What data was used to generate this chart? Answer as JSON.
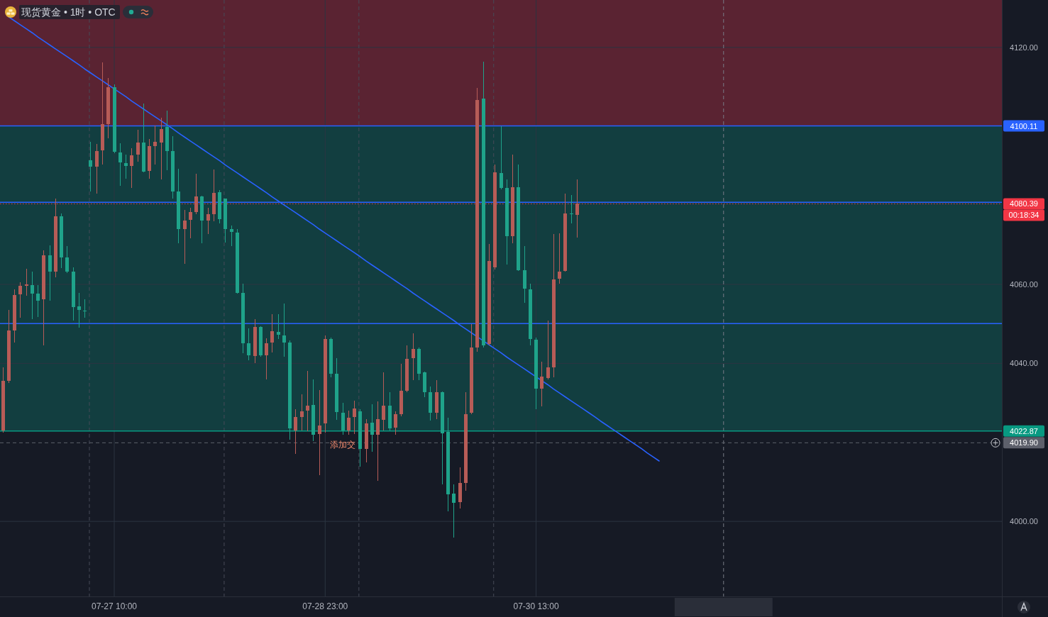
{
  "chart_data": {
    "type": "candlestick",
    "title": "现货黄金 • 1时 • OTC",
    "categories": [
      null,
      null,
      null,
      null,
      null,
      null,
      null,
      null,
      null,
      null,
      null,
      null,
      null,
      null,
      null,
      null,
      null,
      null,
      null,
      "07-27 10:00",
      null,
      null,
      null,
      null,
      null,
      null,
      null,
      null,
      null,
      null,
      null,
      null,
      null,
      null,
      null,
      null,
      null,
      null,
      null,
      null,
      null,
      null,
      null,
      null,
      null,
      null,
      null,
      null,
      null,
      null,
      null,
      null,
      null,
      null,
      null,
      "07-28 23:00",
      null,
      null,
      null,
      null,
      null,
      null,
      null,
      null,
      null,
      null,
      null,
      null,
      null,
      null,
      null,
      null,
      null,
      null,
      null,
      null,
      null,
      null,
      null,
      null,
      null,
      null,
      null,
      null,
      null,
      null,
      null,
      null,
      null,
      null,
      null,
      "07-30 13:00",
      null,
      null,
      null,
      null,
      null,
      null,
      null,
      null,
      null,
      null,
      null,
      null,
      null,
      null,
      null,
      null,
      null,
      null,
      null,
      null,
      null,
      null,
      null,
      null,
      null,
      null,
      null,
      null,
      null,
      null,
      null,
      null,
      null,
      null,
      null,
      null,
      null,
      null,
      null,
      null,
      null,
      null,
      null,
      null,
      null,
      null,
      null,
      null,
      null,
      null,
      null,
      null,
      null,
      null,
      null,
      null,
      null,
      null,
      null,
      null,
      null,
      null,
      null,
      null,
      null,
      null,
      null,
      null,
      null,
      null,
      null,
      null,
      null,
      null,
      null,
      null,
      null,
      null,
      null
    ],
    "ohlc": [
      [
        4023.0,
        4039.0,
        4022.5,
        4035.6
      ],
      [
        4035.6,
        4053.5,
        4035.0,
        4048.3
      ],
      [
        4048.3,
        4058.7,
        4045.3,
        4057.3
      ],
      [
        4057.5,
        4060.5,
        4051.6,
        4059.6
      ],
      [
        4059.6,
        4064.0,
        4057.1,
        4060.0
      ],
      [
        4059.8,
        4063.2,
        4051.2,
        4057.7
      ],
      [
        4057.7,
        4059.8,
        4051.7,
        4055.9
      ],
      [
        4056.2,
        4068.6,
        4044.6,
        4067.4
      ],
      [
        4067.4,
        4069.9,
        4055.9,
        4063.2
      ],
      [
        4063.2,
        4081.7,
        4061.8,
        4077.2
      ],
      [
        4077.2,
        4078.0,
        4064.1,
        4066.8
      ],
      [
        4066.8,
        4069.7,
        4062.9,
        4063.2
      ],
      [
        4063.2,
        4064.3,
        4050.8,
        4054.3
      ],
      [
        4054.4,
        4057.8,
        4049.0,
        4053.5
      ],
      [
        4053.4,
        4056.2,
        4051.6,
        4053.2
      ],
      [
        4091.4,
        4096.1,
        4083.5,
        4089.8
      ],
      [
        4089.8,
        4095.5,
        4083.0,
        4093.8
      ],
      [
        4094.0,
        4116.2,
        4090.4,
        4100.6
      ],
      [
        4100.6,
        4112.3,
        4097.0,
        4109.9
      ],
      [
        4109.9,
        4110.7,
        4093.2,
        4093.6
      ],
      [
        4093.4,
        4095.7,
        4085.0,
        4090.9
      ],
      [
        4090.7,
        4092.9,
        4086.8,
        4090.0
      ],
      [
        4090.0,
        4094.5,
        4084.4,
        4092.7
      ],
      [
        4092.9,
        4099.2,
        4091.1,
        4095.9
      ],
      [
        4095.9,
        4105.8,
        4088.4,
        4088.6
      ],
      [
        4088.7,
        4096.8,
        4086.8,
        4095.0
      ],
      [
        4095.0,
        4100.2,
        4090.4,
        4096.1
      ],
      [
        4095.9,
        4102.2,
        4086.6,
        4099.3
      ],
      [
        4099.9,
        4104.0,
        4088.9,
        4093.8
      ],
      [
        4093.8,
        4097.5,
        4081.7,
        4083.5
      ],
      [
        4083.5,
        4089.3,
        4070.4,
        4074.0
      ],
      [
        4074.0,
        4078.9,
        4065.2,
        4076.2
      ],
      [
        4076.3,
        4079.4,
        4071.7,
        4078.3
      ],
      [
        4078.3,
        4088.0,
        4077.8,
        4082.3
      ],
      [
        4082.3,
        4082.5,
        4070.4,
        4076.2
      ],
      [
        4076.2,
        4079.4,
        4072.8,
        4077.8
      ],
      [
        4077.8,
        4089.1,
        4076.0,
        4083.2
      ],
      [
        4083.4,
        4083.9,
        4075.4,
        4076.5
      ],
      [
        4081.7,
        4081.8,
        4070.6,
        4074.0
      ],
      [
        4074.0,
        4074.9,
        4069.7,
        4073.3
      ],
      [
        4073.1,
        4074.0,
        4057.6,
        4057.8
      ],
      [
        4057.8,
        4060.2,
        4042.6,
        4045.1
      ],
      [
        4045.1,
        4048.9,
        4040.8,
        4042.0
      ],
      [
        4041.9,
        4051.2,
        4040.1,
        4049.2
      ],
      [
        4049.2,
        4049.4,
        4041.7,
        4042.0
      ],
      [
        4042.0,
        4046.3,
        4035.9,
        4045.1
      ],
      [
        4045.3,
        4052.5,
        4042.8,
        4048.1
      ],
      [
        4048.0,
        4052.5,
        4046.2,
        4047.2
      ],
      [
        4047.1,
        4055.2,
        4041.7,
        4045.3
      ],
      [
        4045.3,
        4045.8,
        4020.7,
        4023.5
      ],
      [
        4023.0,
        4028.4,
        4017.1,
        4026.4
      ],
      [
        4026.4,
        4032.2,
        4023.0,
        4027.8
      ],
      [
        4028.0,
        4038.1,
        4022.8,
        4029.3
      ],
      [
        4029.5,
        4035.9,
        4020.3,
        4021.9
      ],
      [
        4022.1,
        4033.2,
        4011.7,
        4024.3
      ],
      [
        4024.8,
        4047.1,
        4022.5,
        4046.2
      ],
      [
        4046.2,
        4046.5,
        4036.5,
        4037.4
      ],
      [
        4037.4,
        4041.3,
        4025.7,
        4027.7
      ],
      [
        4027.5,
        4030.0,
        4021.9,
        4023.0
      ],
      [
        4023.0,
        4028.0,
        4021.9,
        4026.2
      ],
      [
        4026.4,
        4030.5,
        4022.1,
        4028.6
      ],
      [
        4027.8,
        4028.4,
        4013.8,
        4018.3
      ],
      [
        4018.3,
        4025.9,
        4014.9,
        4024.8
      ],
      [
        4025.0,
        4029.6,
        4017.6,
        4021.9
      ],
      [
        4021.9,
        4030.4,
        4010.2,
        4025.9
      ],
      [
        4025.7,
        4037.7,
        4023.0,
        4029.3
      ],
      [
        4029.3,
        4032.7,
        4023.0,
        4023.5
      ],
      [
        4023.7,
        4027.8,
        4021.9,
        4027.1
      ],
      [
        4027.2,
        4039.9,
        4026.6,
        4033.1
      ],
      [
        4033.1,
        4044.6,
        4032.7,
        4041.1
      ],
      [
        4041.3,
        4047.6,
        4035.7,
        4043.7
      ],
      [
        4043.7,
        4044.0,
        4035.7,
        4037.4
      ],
      [
        4037.7,
        4037.9,
        4031.4,
        4032.7
      ],
      [
        4032.7,
        4034.1,
        4025.5,
        4027.5
      ],
      [
        4027.5,
        4035.7,
        4025.9,
        4032.7
      ],
      [
        4032.7,
        4032.9,
        4009.3,
        4022.3
      ],
      [
        4022.6,
        4026.2,
        4002.5,
        4006.8
      ],
      [
        4007.0,
        4009.3,
        3995.9,
        4004.7
      ],
      [
        4004.9,
        4013.7,
        4003.2,
        4009.7
      ],
      [
        4009.7,
        4032.7,
        4007.7,
        4027.1
      ],
      [
        4027.5,
        4049.9,
        4027.1,
        4044.0
      ],
      [
        4044.0,
        4109.8,
        4042.9,
        4106.7
      ],
      [
        4107.1,
        4116.4,
        4044.0,
        4044.6
      ],
      [
        4044.9,
        4070.2,
        4044.6,
        4065.9
      ],
      [
        4064.3,
        4090.4,
        4063.8,
        4088.4
      ],
      [
        4088.2,
        4100.1,
        4084.0,
        4084.4
      ],
      [
        4084.4,
        4086.6,
        4065.0,
        4072.2
      ],
      [
        4072.2,
        4092.9,
        4070.4,
        4084.6
      ],
      [
        4084.6,
        4090.4,
        4063.4,
        4063.6
      ],
      [
        4063.6,
        4069.7,
        4055.3,
        4058.9
      ],
      [
        4058.7,
        4060.2,
        4044.6,
        4046.2
      ],
      [
        4046.0,
        4046.5,
        4028.4,
        4033.6
      ],
      [
        4033.6,
        4040.4,
        4029.1,
        4036.6
      ],
      [
        4036.3,
        4050.8,
        4035.9,
        4039.0
      ],
      [
        4039.0,
        4072.8,
        4036.5,
        4061.3
      ],
      [
        4061.4,
        4072.9,
        4060.2,
        4063.2
      ],
      [
        4063.4,
        4083.0,
        4063.2,
        4078.0
      ],
      [
        4077.9,
        4082.6,
        4075.4,
        4077.7
      ],
      [
        4077.6,
        4086.6,
        4071.9,
        4080.39
      ],
      null,
      null,
      null,
      null,
      null,
      null,
      null,
      null,
      null,
      null,
      null,
      null,
      null,
      null,
      null,
      null,
      null,
      null,
      null,
      null,
      null,
      null,
      null,
      null,
      null,
      null,
      null,
      null,
      null,
      null,
      null,
      null,
      null,
      null,
      null,
      null,
      null,
      null,
      null,
      null,
      null,
      null,
      null,
      null,
      null,
      null,
      null,
      null,
      null,
      null,
      null,
      null,
      null,
      null,
      null,
      null,
      null,
      null,
      null,
      null,
      null,
      null,
      null,
      null,
      null,
      null,
      null,
      null,
      null,
      null,
      null,
      null
    ],
    "colors": [
      "#b75c57",
      "#b75c57",
      "#b75c57",
      "#b75c57",
      "#b75c57",
      "#1fa38a",
      "#1fa38a",
      "#b75c57",
      "#1fa38a",
      "#b75c57",
      "#1fa38a",
      "#1fa38a",
      "#1fa38a",
      "#1fa38a",
      "#1fa38a",
      "#1fa38a",
      "#b75c57",
      "#b75c57",
      "#b75c57",
      "#1fa38a",
      "#1fa38a",
      "#1fa38a",
      "#b75c57",
      "#b75c57",
      "#1fa38a",
      "#b75c57",
      "#b75c57",
      "#b75c57",
      "#1fa38a",
      "#1fa38a",
      "#1fa38a",
      "#b75c57",
      "#b75c57",
      "#b75c57",
      "#1fa38a",
      "#b75c57",
      "#b75c57",
      "#1fa38a",
      "#1fa38a",
      "#1fa38a",
      "#1fa38a",
      "#1fa38a",
      "#1fa38a",
      "#b75c57",
      "#1fa38a",
      "#b75c57",
      "#b75c57",
      "#1fa38a",
      "#1fa38a",
      "#1fa38a",
      "#b75c57",
      "#b75c57",
      "#b75c57",
      "#1fa38a",
      "#b75c57",
      "#b75c57",
      "#1fa38a",
      "#1fa38a",
      "#1fa38a",
      "#b75c57",
      "#b75c57",
      "#1fa38a",
      "#b75c57",
      "#1fa38a",
      "#b75c57",
      "#b75c57",
      "#1fa38a",
      "#b75c57",
      "#b75c57",
      "#b75c57",
      "#b75c57",
      "#1fa38a",
      "#1fa38a",
      "#1fa38a",
      "#b75c57",
      "#1fa38a",
      "#1fa38a",
      "#1fa38a",
      "#b75c57",
      "#b75c57",
      "#b75c57",
      "#b75c57",
      "#1fa38a",
      "#b75c57",
      "#b75c57",
      "#1fa38a",
      "#1fa38a",
      "#b75c57",
      "#1fa38a",
      "#1fa38a",
      "#1fa38a",
      "#1fa38a",
      "#b75c57",
      "#b75c57",
      "#b75c57",
      "#b75c57",
      "#b75c57",
      "#1fa38a",
      "#b75c57",
      null,
      null,
      null,
      null,
      null,
      null,
      null,
      null,
      null,
      null,
      null,
      null,
      null,
      null,
      null,
      null,
      null,
      null,
      null,
      null,
      null,
      null,
      null,
      null,
      null,
      null,
      null,
      null,
      null,
      null,
      null,
      null,
      null,
      null,
      null,
      null,
      null,
      null,
      null,
      null,
      null,
      null,
      null,
      null,
      null,
      null,
      null,
      null,
      null,
      null,
      null,
      null,
      null,
      null,
      null,
      null,
      null,
      null,
      null,
      null,
      null,
      null,
      null,
      null,
      null,
      null,
      null,
      null,
      null,
      null,
      null,
      null
    ],
    "series": [
      {
        "type": "line",
        "color": "#2962ff",
        "values": [
          null,
          4127.7,
          4126.7,
          4125.7,
          4124.7,
          4123.7,
          4122.6,
          4121.6,
          4120.6,
          4119.6,
          4118.6,
          4117.6,
          4116.6,
          4115.6,
          4114.5,
          4113.5,
          4112.5,
          4111.5,
          4110.5,
          4109.5,
          4108.5,
          4107.5,
          4106.4,
          4105.4,
          4104.4,
          4103.4,
          4102.4,
          4101.4,
          4100.4,
          4099.4,
          4098.3,
          4097.3,
          4096.3,
          4095.3,
          4094.3,
          4093.3,
          4092.3,
          4091.3,
          4090.2,
          4089.2,
          4088.2,
          4087.2,
          4086.2,
          4085.2,
          4084.2,
          4083.2,
          4082.1,
          4081.1,
          4080.1,
          4079.1,
          4078.1,
          4077.1,
          4076.1,
          4075.1,
          4074.0,
          4073.0,
          4072.0,
          4071.0,
          4070.0,
          4069.0,
          4068.0,
          4067.0,
          4065.9,
          4064.9,
          4063.9,
          4062.9,
          4061.9,
          4060.9,
          4059.9,
          4058.9,
          4057.8,
          4056.8,
          4055.8,
          4054.8,
          4053.8,
          4052.8,
          4051.8,
          4050.8,
          4049.7,
          4048.7,
          4047.7,
          4046.7,
          4045.7,
          4044.7,
          4043.7,
          4042.7,
          4041.6,
          4040.6,
          4039.6,
          4038.6,
          4037.6,
          4036.6,
          4035.6,
          4034.6,
          4033.5,
          4032.5,
          4031.5,
          4030.5,
          4029.5,
          4028.5,
          4027.5,
          4026.5,
          4025.4,
          4024.4,
          4023.4,
          4022.4,
          4021.4,
          4020.4,
          4019.4,
          4018.4,
          4017.3,
          4016.3,
          4015.3,
          null,
          null,
          null,
          null,
          null,
          null,
          null,
          null,
          null,
          null,
          null,
          null,
          null,
          null,
          null,
          null,
          null,
          null,
          null,
          null,
          null,
          null,
          null,
          null,
          null,
          null,
          null,
          null,
          null,
          null,
          null,
          null,
          null,
          null,
          null,
          null,
          null,
          null,
          null,
          null,
          null,
          null,
          null,
          null,
          null,
          null,
          null,
          null,
          null,
          null,
          null,
          null,
          null,
          null,
          null,
          null,
          null,
          null
        ]
      }
    ],
    "ylim": [
      3981,
      4132
    ],
    "yticks": [
      {
        "value": 4000,
        "label": "4000.00"
      },
      {
        "value": 4040,
        "label": "4040.00"
      },
      {
        "value": 4060,
        "label": "4060.00"
      },
      {
        "value": 4120,
        "label": "4120.00"
      }
    ],
    "grid": true,
    "bands": [
      {
        "axis": "y",
        "from": 4100.11,
        "to": 4132,
        "color": "#5a2332"
      },
      {
        "axis": "y",
        "from": 4022.87,
        "to": 4100.11,
        "color": "#123e40"
      }
    ],
    "ref_lines": [
      {
        "axis": "y",
        "value": 4100.11,
        "label": "4100.11",
        "color": "#2962ff"
      },
      {
        "axis": "y",
        "value": 4080.8,
        "color": "#2962ff"
      },
      {
        "axis": "y",
        "value": 4050.1,
        "color": "#2962ff"
      },
      {
        "axis": "y",
        "value": 4080.39,
        "label": "4080.39",
        "color": "#f23645",
        "line_style": "dotted"
      },
      {
        "axis": "y",
        "value": 4022.87,
        "label": "4022.87",
        "color": "#089981"
      },
      {
        "axis": "y",
        "value": 4019.9,
        "label": "4019.90",
        "color": "#5d606b",
        "line_style": "dashed"
      }
    ],
    "annotations": [
      "00:18:34",
      {
        "text": "添加交",
        "y": 4019.9
      }
    ]
  }
}
